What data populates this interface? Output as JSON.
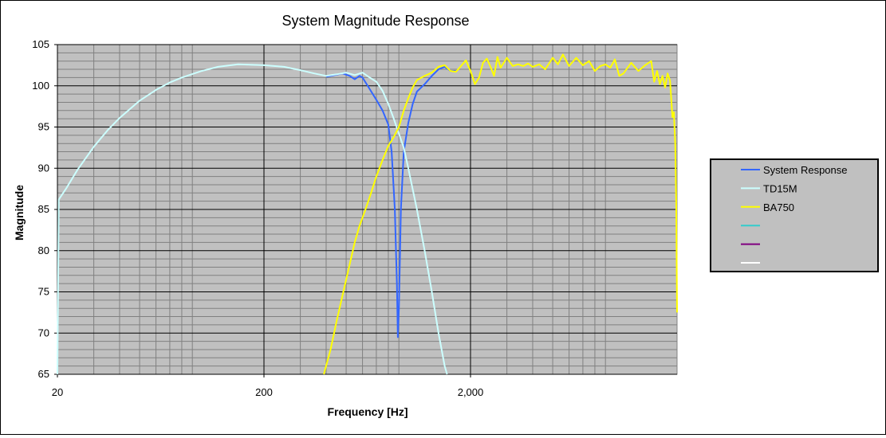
{
  "chart_data": {
    "type": "line",
    "title": "System Magnitude Response",
    "xlabel": "Frequency [Hz]",
    "ylabel": "Magnitude",
    "x_scale": "log",
    "xlim": [
      20,
      20000
    ],
    "ylim": [
      65,
      105
    ],
    "x_ticks": [
      20,
      200,
      2000
    ],
    "x_tick_labels": [
      "20",
      "200",
      "2,000"
    ],
    "y_ticks": [
      65,
      70,
      75,
      80,
      85,
      90,
      95,
      100,
      105
    ],
    "grid": true,
    "plot_background": "#c0c0c0",
    "legend_position": "right",
    "series": [
      {
        "name": "System Response",
        "color": "#3366ff",
        "points": [
          [
            400,
            101.1
          ],
          [
            440,
            101.3
          ],
          [
            480,
            101.5
          ],
          [
            520,
            101.2
          ],
          [
            550,
            100.8
          ],
          [
            580,
            101.2
          ],
          [
            600,
            101.0
          ],
          [
            650,
            99.6
          ],
          [
            700,
            98.3
          ],
          [
            750,
            97.0
          ],
          [
            800,
            95.3
          ],
          [
            830,
            92.0
          ],
          [
            860,
            85.0
          ],
          [
            880,
            76.0
          ],
          [
            890,
            69.5
          ],
          [
            900,
            73.0
          ],
          [
            920,
            85.0
          ],
          [
            950,
            92.0
          ],
          [
            1000,
            95.5
          ],
          [
            1050,
            97.8
          ],
          [
            1100,
            99.3
          ],
          [
            1200,
            100.2
          ],
          [
            1300,
            101.2
          ],
          [
            1400,
            102.0
          ],
          [
            1500,
            102.3
          ],
          [
            1600,
            101.8
          ],
          [
            1700,
            101.8
          ]
        ]
      },
      {
        "name": "TD15M",
        "color": "#ccffff",
        "points": [
          [
            20,
            65
          ],
          [
            20.3,
            86.2
          ],
          [
            22,
            87.5
          ],
          [
            25,
            89.8
          ],
          [
            30,
            92.6
          ],
          [
            35,
            94.6
          ],
          [
            40,
            96.1
          ],
          [
            50,
            98.2
          ],
          [
            60,
            99.5
          ],
          [
            70,
            100.4
          ],
          [
            80,
            101.0
          ],
          [
            100,
            101.8
          ],
          [
            120,
            102.3
          ],
          [
            150,
            102.6
          ],
          [
            200,
            102.5
          ],
          [
            250,
            102.3
          ],
          [
            300,
            101.9
          ],
          [
            350,
            101.5
          ],
          [
            400,
            101.2
          ],
          [
            450,
            101.4
          ],
          [
            500,
            101.6
          ],
          [
            550,
            101.3
          ],
          [
            600,
            101.6
          ],
          [
            650,
            101.0
          ],
          [
            700,
            100.5
          ],
          [
            750,
            99.4
          ],
          [
            800,
            97.8
          ],
          [
            850,
            96.0
          ],
          [
            900,
            94.2
          ],
          [
            950,
            92.5
          ],
          [
            1000,
            90.0
          ],
          [
            1100,
            85.0
          ],
          [
            1200,
            80.0
          ],
          [
            1300,
            75.0
          ],
          [
            1400,
            70.0
          ],
          [
            1500,
            66.0
          ],
          [
            1540,
            65.0
          ]
        ]
      },
      {
        "name": "BA750",
        "color": "#ffff00",
        "points": [
          [
            390,
            65.0
          ],
          [
            420,
            68.0
          ],
          [
            450,
            71.5
          ],
          [
            500,
            76.5
          ],
          [
            550,
            81.0
          ],
          [
            580,
            83.0
          ],
          [
            620,
            85.0
          ],
          [
            660,
            87.0
          ],
          [
            700,
            89.0
          ],
          [
            750,
            91.0
          ],
          [
            800,
            92.7
          ],
          [
            850,
            93.8
          ],
          [
            900,
            95.0
          ],
          [
            950,
            97.0
          ],
          [
            1000,
            98.5
          ],
          [
            1050,
            99.8
          ],
          [
            1100,
            100.7
          ],
          [
            1200,
            101.2
          ],
          [
            1300,
            101.6
          ],
          [
            1400,
            102.3
          ],
          [
            1500,
            102.5
          ],
          [
            1600,
            101.8
          ],
          [
            1700,
            101.7
          ],
          [
            1800,
            102.4
          ],
          [
            1900,
            103.1
          ],
          [
            2000,
            101.8
          ],
          [
            2100,
            100.2
          ],
          [
            2200,
            101.0
          ],
          [
            2300,
            102.8
          ],
          [
            2400,
            103.3
          ],
          [
            2500,
            102.3
          ],
          [
            2600,
            101.2
          ],
          [
            2700,
            103.5
          ],
          [
            2800,
            102.2
          ],
          [
            3000,
            103.4
          ],
          [
            3200,
            102.4
          ],
          [
            3400,
            102.6
          ],
          [
            3600,
            102.4
          ],
          [
            3800,
            102.7
          ],
          [
            4000,
            102.3
          ],
          [
            4300,
            102.6
          ],
          [
            4600,
            102.0
          ],
          [
            5000,
            103.4
          ],
          [
            5300,
            102.6
          ],
          [
            5600,
            103.8
          ],
          [
            6000,
            102.4
          ],
          [
            6500,
            103.4
          ],
          [
            7000,
            102.5
          ],
          [
            7500,
            103.0
          ],
          [
            8000,
            101.8
          ],
          [
            8500,
            102.4
          ],
          [
            9000,
            102.6
          ],
          [
            9500,
            102.2
          ],
          [
            10000,
            103.2
          ],
          [
            10500,
            101.2
          ],
          [
            11000,
            101.5
          ],
          [
            12000,
            102.8
          ],
          [
            13000,
            101.8
          ],
          [
            14000,
            102.5
          ],
          [
            15000,
            103.0
          ],
          [
            15500,
            100.5
          ],
          [
            16000,
            101.8
          ],
          [
            16500,
            100.2
          ],
          [
            17000,
            101.2
          ],
          [
            17500,
            99.8
          ],
          [
            18000,
            101.5
          ],
          [
            18500,
            100.6
          ],
          [
            19000,
            96.2
          ],
          [
            19300,
            96.8
          ],
          [
            19600,
            93.0
          ],
          [
            19800,
            86.0
          ],
          [
            20000,
            72.5
          ]
        ]
      },
      {
        "name": "",
        "color": "#33cccc",
        "points": []
      },
      {
        "name": "",
        "color": "#800080",
        "points": []
      },
      {
        "name": "",
        "color": "#ffffff",
        "points": []
      }
    ]
  }
}
